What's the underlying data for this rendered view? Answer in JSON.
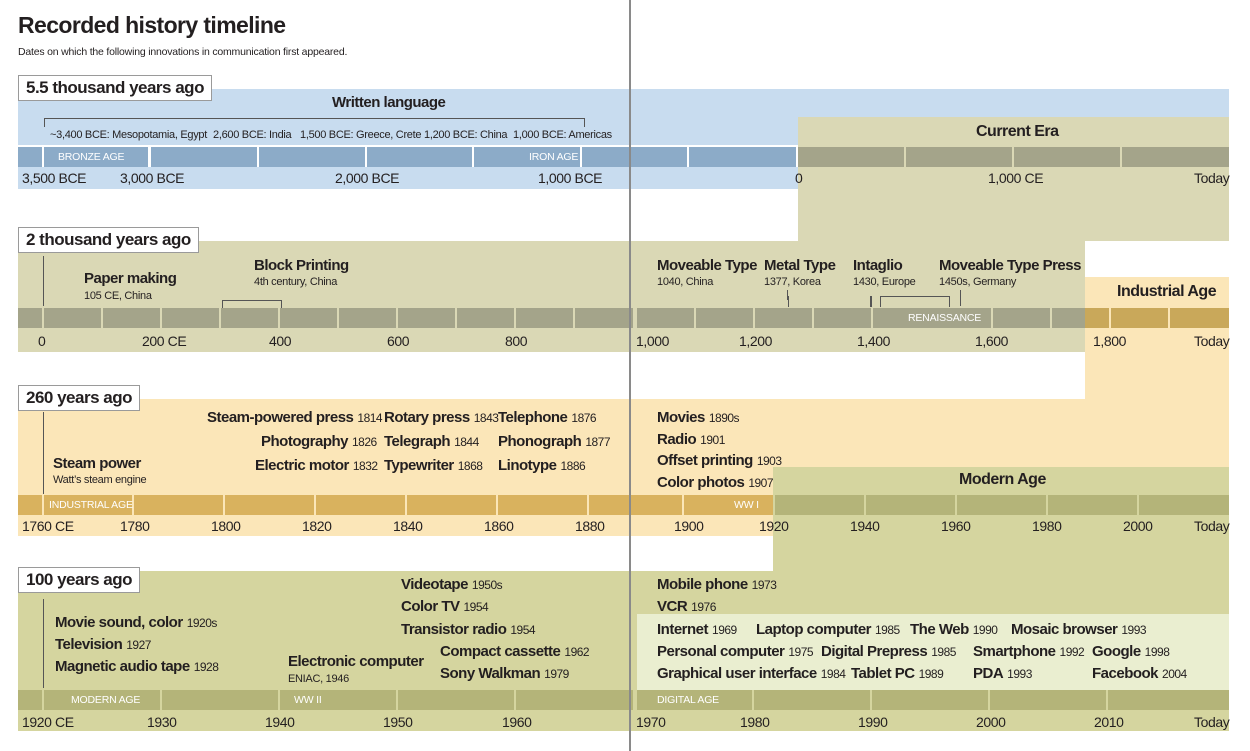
{
  "header": {
    "title": "Recorded history timeline",
    "subtitle": "Dates on which the following innovations in communication first appeared."
  },
  "colors": {
    "blue_band": "#c8dcef",
    "blue_bar": "#8cabc8",
    "olive_band": "#dad8b5",
    "olive_bar": "#a4a48a",
    "gold_band": "#fbe6b8",
    "gold_bar": "#d9b25e",
    "green_band": "#d5d59f",
    "green_bar": "#b4b479",
    "pale_green": "#eaeed0"
  },
  "row1": {
    "label": "5.5 thousand years ago",
    "band_title": "Written language",
    "places": [
      "~3,400 BCE: Mesopotamia, Egypt",
      "2,600 BCE: India",
      "1,500 BCE: Greece, Crete",
      "1,200 BCE: China",
      "1,000 BCE: Americas"
    ],
    "periods": [
      "BRONZE AGE",
      "IRON  AGE"
    ],
    "ticks": [
      "3,500 BCE",
      "3,000 BCE",
      "2,000 BCE",
      "1,000 BCE",
      "0",
      "1,000 CE",
      "Today"
    ],
    "next_era": "Current Era"
  },
  "row2": {
    "label": "2 thousand years ago",
    "events": [
      {
        "name": "Paper making",
        "detail": "105 CE, China"
      },
      {
        "name": "Block Printing",
        "detail": "4th century, China"
      },
      {
        "name": "Moveable Type",
        "detail": "1040, China"
      },
      {
        "name": "Metal Type",
        "detail": "1377, Korea"
      },
      {
        "name": "Intaglio",
        "detail": "1430, Europe"
      },
      {
        "name": "Moveable Type Press",
        "detail": "1450s, Germany"
      }
    ],
    "periods": [
      "RENAISSANCE"
    ],
    "ticks": [
      "0",
      "200 CE",
      "400",
      "600",
      "800",
      "1,000",
      "1,200",
      "1,400",
      "1,600",
      "1,800",
      "Today"
    ],
    "next_era": "Industrial Age"
  },
  "row3": {
    "label": "260 years ago",
    "events": [
      {
        "name": "Steam power",
        "detail": "Watt’s steam engine"
      },
      {
        "name": "Steam-powered press",
        "year": "1814"
      },
      {
        "name": "Photography",
        "year": "1826"
      },
      {
        "name": "Electric motor",
        "year": "1832"
      },
      {
        "name": "Rotary press",
        "year": "1843"
      },
      {
        "name": "Telegraph",
        "year": "1844"
      },
      {
        "name": "Typewriter",
        "year": "1868"
      },
      {
        "name": "Telephone",
        "year": "1876"
      },
      {
        "name": "Phonograph",
        "year": "1877"
      },
      {
        "name": "Linotype",
        "year": "1886"
      },
      {
        "name": "Movies",
        "year": "1890s"
      },
      {
        "name": "Radio",
        "year": "1901"
      },
      {
        "name": "Offset printing",
        "year": "1903"
      },
      {
        "name": "Color photos",
        "year": "1907"
      }
    ],
    "periods": [
      "INDUSTRIAL AGE",
      "WW I"
    ],
    "ticks": [
      "1760 CE",
      "1780",
      "1800",
      "1820",
      "1840",
      "1860",
      "1880",
      "1900",
      "1920",
      "1940",
      "1960",
      "1980",
      "2000",
      "Today"
    ],
    "next_era": "Modern Age"
  },
  "row4": {
    "label": "100 years ago",
    "events": [
      {
        "name": "Movie sound, color",
        "year": "1920s"
      },
      {
        "name": "Television",
        "year": "1927"
      },
      {
        "name": "Magnetic audio tape",
        "year": "1928"
      },
      {
        "name": "Electronic computer",
        "detail": "ENIAC, 1946"
      },
      {
        "name": "Videotape",
        "year": "1950s"
      },
      {
        "name": "Color TV",
        "year": "1954"
      },
      {
        "name": "Transistor radio",
        "year": "1954"
      },
      {
        "name": "Compact cassette",
        "year": "1962"
      },
      {
        "name": "Sony Walkman",
        "year": "1979"
      },
      {
        "name": "Mobile phone",
        "year": "1973"
      },
      {
        "name": "VCR",
        "year": "1976"
      },
      {
        "name": "Internet",
        "year": "1969"
      },
      {
        "name": "Personal computer",
        "year": "1975"
      },
      {
        "name": "Graphical user interface",
        "year": "1984"
      },
      {
        "name": "Laptop computer",
        "year": "1985"
      },
      {
        "name": "Digital Prepress",
        "year": "1985"
      },
      {
        "name": "Tablet PC",
        "year": "1989"
      },
      {
        "name": "The Web",
        "year": "1990"
      },
      {
        "name": "Smartphone",
        "year": "1992"
      },
      {
        "name": "PDA",
        "year": "1993"
      },
      {
        "name": "Mosaic browser",
        "year": "1993"
      },
      {
        "name": "Google",
        "year": "1998"
      },
      {
        "name": "Facebook",
        "year": "2004"
      }
    ],
    "periods": [
      "MODERN AGE",
      "WW II",
      "DIGITAL AGE"
    ],
    "ticks": [
      "1920 CE",
      "1930",
      "1940",
      "1950",
      "1960",
      "1970",
      "1980",
      "1990",
      "2000",
      "2010",
      "Today"
    ]
  }
}
